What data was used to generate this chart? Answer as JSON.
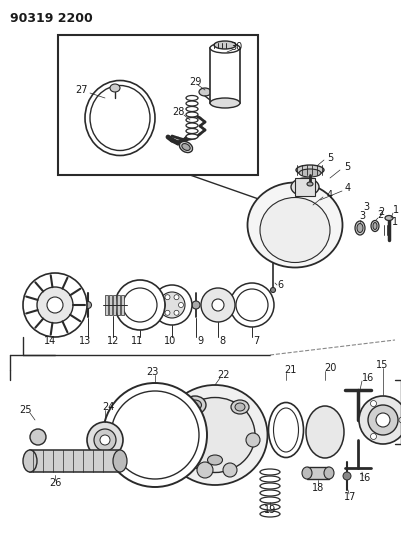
{
  "title": "90319 2200",
  "bg_color": "#ffffff",
  "line_color": "#2a2a2a",
  "text_color": "#1a1a1a",
  "fig_w": 4.01,
  "fig_h": 5.33,
  "dpi": 100
}
